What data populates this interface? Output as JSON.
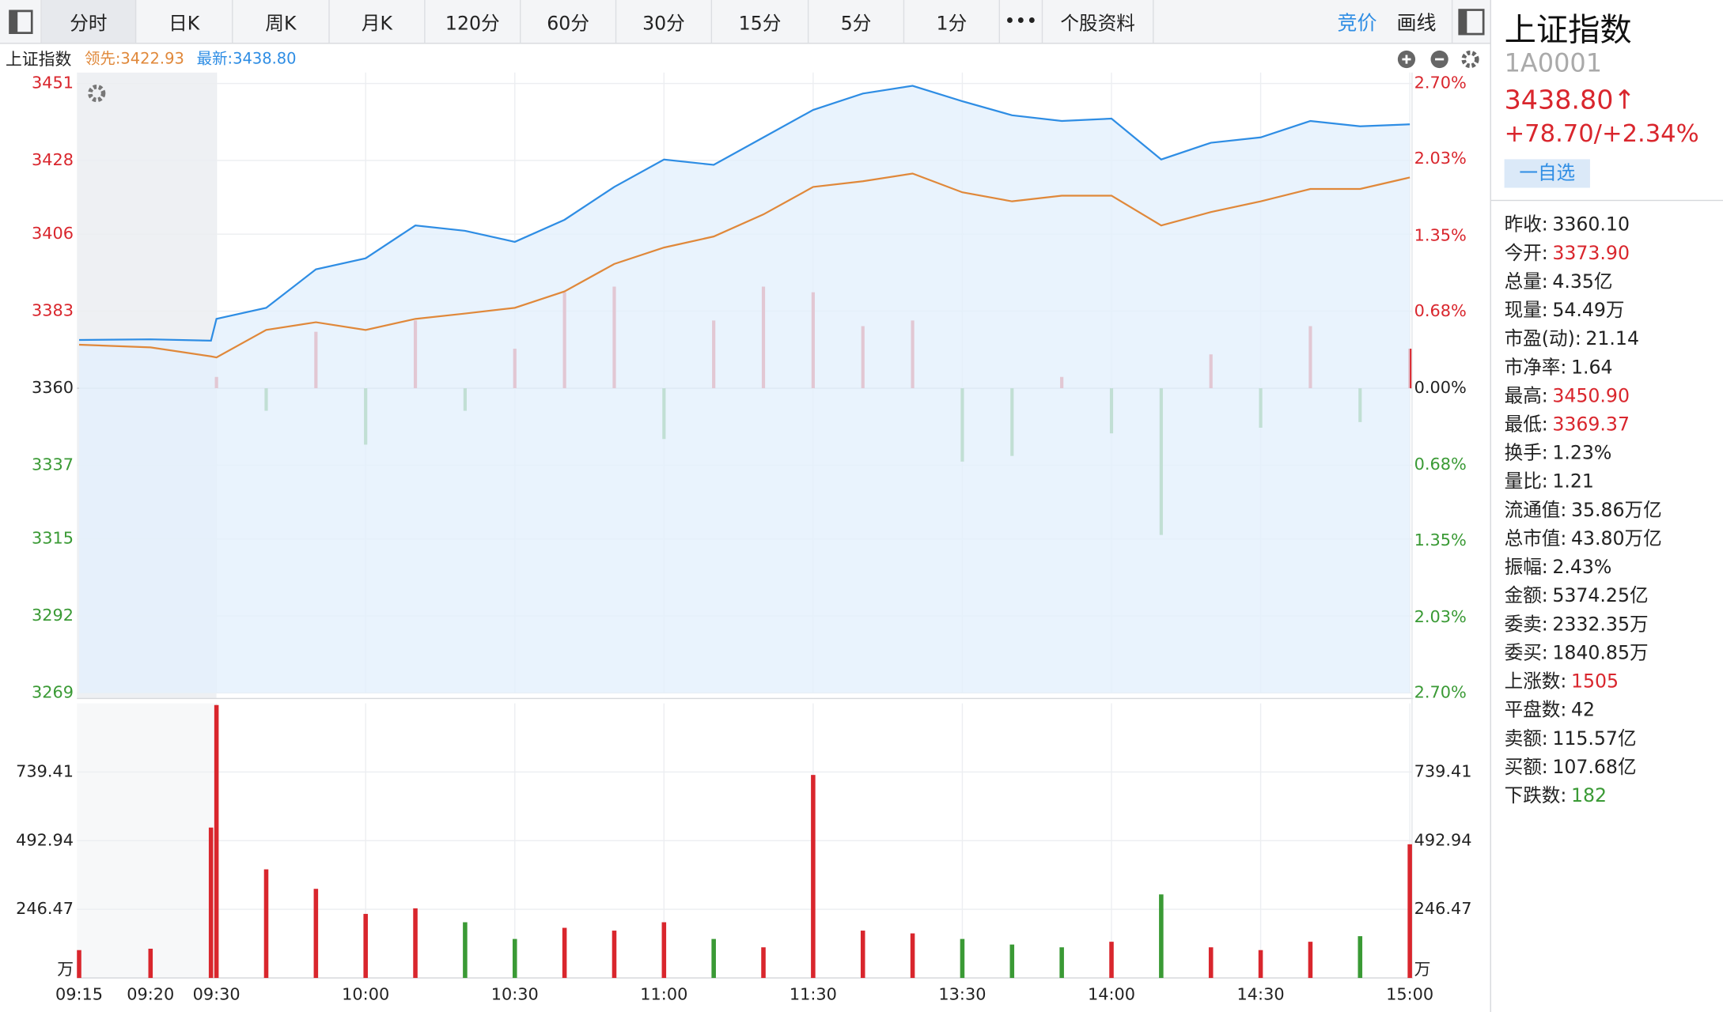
{
  "toolbar": {
    "tabs": [
      "分时",
      "日K",
      "周K",
      "月K",
      "120分",
      "60分",
      "30分",
      "15分",
      "5分",
      "1分",
      "•••",
      "个股资料"
    ],
    "active": 0,
    "right": [
      "竞价",
      "画线"
    ]
  },
  "sidebar": {
    "name": "上证指数",
    "code": "1A0001",
    "price": "3438.80↑",
    "change": "+78.70/+2.34%",
    "button": "一自选",
    "stats": [
      {
        "label": "昨收:",
        "value": "3360.10"
      },
      {
        "label": "今开:",
        "value": "3373.90",
        "color": "#d9262d"
      },
      {
        "label": "总量:",
        "value": "4.35亿"
      },
      {
        "label": "现量:",
        "value": "54.49万"
      },
      {
        "label": "市盈(动):",
        "value": "21.14"
      },
      {
        "label": "市净率:",
        "value": "1.64"
      },
      {
        "label": "最高:",
        "value": "3450.90",
        "color": "#d9262d"
      },
      {
        "label": "最低:",
        "value": "3369.37",
        "color": "#d9262d"
      },
      {
        "label": "换手:",
        "value": "1.23%"
      },
      {
        "label": "量比:",
        "value": "1.21"
      },
      {
        "label": "流通值:",
        "value": "35.86万亿"
      },
      {
        "label": "总市值:",
        "value": "43.80万亿"
      },
      {
        "label": "振幅:",
        "value": "2.43%"
      },
      {
        "label": "金额:",
        "value": "5374.25亿"
      },
      {
        "label": "委卖:",
        "value": "2332.35万"
      },
      {
        "label": "委买:",
        "value": "1840.85万"
      },
      {
        "label": "上涨数:",
        "value": "1505",
        "color": "#d9262d"
      },
      {
        "label": "平盘数:",
        "value": "42"
      },
      {
        "label": "卖额:",
        "value": "115.57亿"
      },
      {
        "label": "买额:",
        "value": "107.68亿"
      },
      {
        "label": "下跌数:",
        "value": "182",
        "color": "#3a9a35"
      }
    ]
  },
  "chart_data": [
    {
      "type": "line",
      "title": "上证指数",
      "ylim": [
        3269,
        3451
      ],
      "yticks": [
        3451,
        3428,
        3406,
        3383,
        3360,
        3337,
        3315,
        3292,
        3269
      ],
      "y2lim": [
        -2.7,
        2.7
      ],
      "y2ticks": [
        {
          "value": 2.7,
          "label": "2.70%"
        },
        {
          "value": 2.03,
          "label": "2.03%"
        },
        {
          "value": 1.35,
          "label": "1.35%"
        },
        {
          "value": 0.68,
          "label": "0.68%"
        },
        {
          "value": 0,
          "label": "0.00%"
        },
        {
          "value": -0.68,
          "label": "0.68%"
        },
        {
          "value": -1.35,
          "label": "1.35%"
        },
        {
          "value": -2.03,
          "label": "2.03%"
        },
        {
          "value": -2.7,
          "label": "2.70%"
        }
      ],
      "grid": true,
      "series": [
        {
          "name": "领先:3422.93",
          "color": "#e0883a",
          "values": [
            3373.0,
            3372.2,
            3369.5,
            3369.2,
            3377.4,
            3379.7,
            3377.4,
            3380.7,
            3382.3,
            3384.0,
            3388.9,
            3397.1,
            3402.0,
            3405.3,
            3411.9,
            3420.1,
            3421.8,
            3424.1,
            3418.5,
            3415.8,
            3417.5,
            3417.5,
            3408.6,
            3412.6,
            3415.8,
            3419.5,
            3419.5,
            3422.93
          ]
        },
        {
          "name": "最新:3438.80",
          "color": "#2e8de4",
          "fill": "#e4f0fc",
          "values": [
            3374.4,
            3374.6,
            3374.2,
            3380.7,
            3384.0,
            3395.5,
            3398.8,
            3408.6,
            3407.0,
            3403.7,
            3410.3,
            3420.1,
            3428.3,
            3426.7,
            3434.9,
            3443.1,
            3448.0,
            3450.3,
            3445.7,
            3441.5,
            3439.8,
            3440.5,
            3428.3,
            3433.3,
            3434.9,
            3439.8,
            3438.2,
            3438.8
          ]
        },
        {
          "type": "bar",
          "axis": "y2",
          "color": [
            "#d9262d",
            "#3a9a35"
          ],
          "values": [
            null,
            null,
            null,
            0.1,
            -0.2,
            0.5,
            -0.5,
            0.6,
            -0.2,
            0.35,
            0.85,
            0.9,
            -0.45,
            0.6,
            0.9,
            0.85,
            0.55,
            0.6,
            -0.65,
            -0.6,
            0.1,
            -0.4,
            -1.3,
            0.3,
            -0.35,
            0.55,
            -0.3,
            0.35
          ]
        }
      ]
    },
    {
      "type": "bar",
      "ylim": [
        0,
        985.88
      ],
      "yticks": [
        {
          "value": 0,
          "label": "万"
        },
        246.47,
        492.94,
        739.41
      ],
      "categories": [
        "09:15",
        "09:20",
        null,
        "09:30",
        null,
        null,
        "10:00",
        null,
        null,
        "10:30",
        null,
        null,
        "11:00",
        null,
        null,
        "11:30",
        null,
        null,
        "13:30",
        null,
        null,
        "14:00",
        null,
        null,
        "14:30",
        null,
        null,
        "15:00"
      ],
      "color": [
        "#d9262d",
        "#3a9a35"
      ],
      "values": [
        100,
        105,
        540,
        980,
        390,
        320,
        230,
        250,
        200,
        140,
        180,
        170,
        200,
        140,
        110,
        729,
        170,
        160,
        140,
        120,
        110,
        130,
        300,
        110,
        100,
        130,
        150,
        480
      ]
    }
  ]
}
